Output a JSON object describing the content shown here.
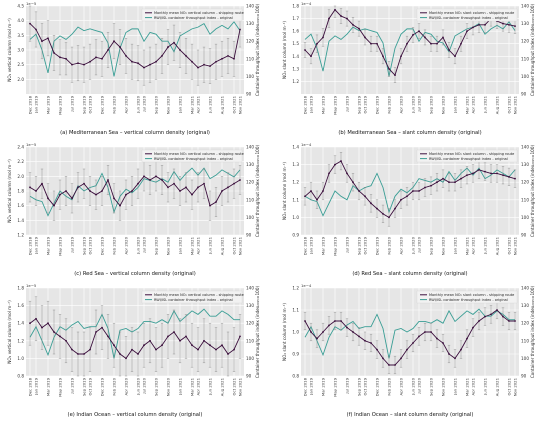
{
  "months": [
    "Dec 2018",
    "Jan 2019",
    "Feb 2019",
    "Mar 2019",
    "Apr 2019",
    "May 2019",
    "Jun 2019",
    "Jul 2019",
    "Aug 2019",
    "Sep 2019",
    "Oct 2019",
    "Nov 2019",
    "Dec 2019",
    "Jan 2020",
    "Feb 2020",
    "Mar 2020",
    "Apr 2020",
    "May 2020",
    "Jun 2020",
    "Jul 2020",
    "Aug 2020",
    "Sep 2020",
    "Oct 2020",
    "Nov 2020",
    "Dec 2020",
    "Jan 2021",
    "Feb 2021",
    "Mar 2021",
    "Apr 2021",
    "May 2021",
    "Jun 2021",
    "Jul 2021",
    "Aug 2021",
    "Sep 2021",
    "Oct 2021",
    "Nov 2021"
  ],
  "tick_labels": [
    "Dec 2018",
    "Jan 2019",
    "Mar 2019",
    "May 2019",
    "Jul 2019",
    "Sep 2019",
    "Oct 2019",
    "Dec 2019",
    "Feb 2020",
    "Apr 2020",
    "Jun 2020",
    "Jul 2020",
    "Sep 2020",
    "Nov 2020",
    "Jan 2021",
    "Mar 2021",
    "Apr 2021",
    "Jun 2021",
    "Aug 2021",
    "Oct 2021",
    "Nov 2021"
  ],
  "colors": {
    "no2": "#3b0f3d",
    "rwi": "#3a9e95",
    "bg": "#e6e6e6",
    "grid": "#ffffff"
  },
  "legend": {
    "vertical": "Monthly mean NO₂ vertical column - shipping route",
    "slant": "Monthly mean NO₂ slant column - shipping route",
    "rwi": "RWI/ISL container throughput index - original"
  },
  "axes": {
    "vertical_ylabel": "NO₂ vertical column (mol m⁻²)",
    "slant_ylabel": "NO₂ slant column (mol m⁻²)",
    "right_ylabel": "Container throughput index (index₂₀₁₅=100)"
  },
  "chart_data": [
    {
      "type": "line",
      "id": "a",
      "caption": "(a) Mediterranean Sea – vertical column density (original)",
      "exponent": "1e-5",
      "ylabel_key": "vertical",
      "ylim": [
        1.5,
        4.5
      ],
      "yticks": [
        2.0,
        2.5,
        3.0,
        3.5,
        4.0,
        4.5
      ],
      "y2lim": [
        90,
        140
      ],
      "y2ticks": [
        90,
        100,
        110,
        120,
        130,
        140
      ],
      "series": [
        {
          "name": "Monthly mean NO₂ vertical column - shipping route",
          "axis": "left",
          "values": [
            3.9,
            3.7,
            3.3,
            3.4,
            2.9,
            2.75,
            2.7,
            2.5,
            2.55,
            2.5,
            2.6,
            2.75,
            2.7,
            3.0,
            3.3,
            3.1,
            2.8,
            2.6,
            2.55,
            2.4,
            2.5,
            2.6,
            2.8,
            3.1,
            3.25,
            3.0,
            2.8,
            2.6,
            2.4,
            2.5,
            2.45,
            2.6,
            2.7,
            2.8,
            2.7,
            3.7
          ],
          "err": [
            0.6,
            0.6,
            0.6,
            0.6,
            0.6,
            0.6,
            0.55,
            0.6,
            0.6,
            0.6,
            0.6,
            0.6,
            0.6,
            0.6,
            0.6,
            0.6,
            0.6,
            0.6,
            0.6,
            0.6,
            0.6,
            0.6,
            0.6,
            0.6,
            0.6,
            0.6,
            0.6,
            0.6,
            0.6,
            0.6,
            0.6,
            0.6,
            0.6,
            0.6,
            0.6,
            0.6
          ]
        },
        {
          "name": "RWI/ISL container throughput index - original",
          "axis": "right",
          "values": [
            121,
            124,
            115,
            102,
            120,
            123,
            121,
            124,
            128,
            126,
            127,
            126,
            125,
            119,
            100,
            116,
            125,
            127,
            127,
            120,
            125,
            124,
            120,
            120,
            114,
            123,
            125,
            127,
            128,
            130,
            124,
            127,
            129,
            127,
            131,
            126
          ]
        }
      ]
    },
    {
      "type": "line",
      "id": "b",
      "caption": "(b) Mediterranean Sea – slant column density (original)",
      "exponent": "1e-4",
      "ylabel_key": "slant",
      "ylim": [
        1.1,
        1.8
      ],
      "yticks": [
        1.2,
        1.3,
        1.4,
        1.5,
        1.6,
        1.7,
        1.8
      ],
      "y2lim": [
        90,
        140
      ],
      "y2ticks": [
        90,
        100,
        110,
        120,
        130,
        140
      ],
      "series": [
        {
          "name": "Monthly mean NO₂ slant column - shipping route",
          "axis": "left",
          "values": [
            1.45,
            1.4,
            1.5,
            1.55,
            1.7,
            1.77,
            1.72,
            1.7,
            1.65,
            1.62,
            1.55,
            1.5,
            1.5,
            1.4,
            1.3,
            1.25,
            1.4,
            1.5,
            1.57,
            1.6,
            1.55,
            1.5,
            1.5,
            1.55,
            1.45,
            1.4,
            1.5,
            1.6,
            1.63,
            1.65,
            1.65,
            1.7,
            1.68,
            1.66,
            1.65,
            1.64
          ],
          "err": [
            0.06,
            0.06,
            0.07,
            0.07,
            0.07,
            0.06,
            0.06,
            0.06,
            0.06,
            0.06,
            0.06,
            0.06,
            0.06,
            0.06,
            0.06,
            0.06,
            0.06,
            0.06,
            0.06,
            0.06,
            0.06,
            0.06,
            0.06,
            0.06,
            0.06,
            0.06,
            0.06,
            0.06,
            0.06,
            0.06,
            0.06,
            0.06,
            0.06,
            0.06,
            0.06,
            0.06
          ]
        },
        {
          "name": "RWI/ISL container throughput index - original",
          "axis": "right",
          "values": [
            121,
            124,
            116,
            103,
            120,
            123,
            121,
            124,
            128,
            126,
            127,
            126,
            125,
            119,
            100,
            116,
            124,
            127,
            127,
            120,
            125,
            124,
            120,
            119,
            114,
            123,
            125,
            127,
            128,
            130,
            124,
            127,
            129,
            127,
            131,
            126
          ]
        }
      ]
    },
    {
      "type": "line",
      "id": "c",
      "caption": "(c) Red Sea – vertical column density (original)",
      "exponent": "1e-5",
      "ylabel_key": "vertical",
      "ylim": [
        1.2,
        2.4
      ],
      "yticks": [
        1.2,
        1.4,
        1.6,
        1.8,
        2.0,
        2.2,
        2.4
      ],
      "y2lim": [
        90,
        140
      ],
      "y2ticks": [
        90,
        100,
        110,
        120,
        130,
        140
      ],
      "series": [
        {
          "name": "Monthly mean NO₂ vertical column - shipping route",
          "axis": "left",
          "values": [
            1.85,
            1.8,
            1.9,
            1.7,
            1.6,
            1.75,
            1.8,
            1.7,
            1.85,
            1.9,
            1.8,
            1.75,
            1.8,
            1.95,
            1.7,
            1.6,
            1.75,
            1.8,
            1.9,
            2.0,
            1.95,
            2.0,
            1.95,
            1.85,
            1.9,
            1.8,
            1.85,
            1.75,
            1.85,
            1.9,
            1.6,
            1.65,
            1.8,
            1.85,
            1.9,
            1.95
          ],
          "err": [
            0.2,
            0.2,
            0.2,
            0.2,
            0.2,
            0.2,
            0.2,
            0.2,
            0.2,
            0.2,
            0.2,
            0.2,
            0.2,
            0.2,
            0.2,
            0.2,
            0.2,
            0.2,
            0.2,
            0.2,
            0.2,
            0.2,
            0.2,
            0.2,
            0.2,
            0.2,
            0.2,
            0.2,
            0.2,
            0.2,
            0.2,
            0.2,
            0.2,
            0.2,
            0.2,
            0.2
          ]
        },
        {
          "name": "RWI/ISL container throughput index - original",
          "axis": "right",
          "values": [
            112,
            110,
            109,
            101,
            108,
            115,
            112,
            110,
            118,
            115,
            117,
            118,
            125,
            117,
            103,
            112,
            116,
            114,
            117,
            122,
            121,
            120,
            122,
            120,
            126,
            121,
            125,
            128,
            124,
            128,
            122,
            124,
            127,
            125,
            123,
            127
          ]
        }
      ]
    },
    {
      "type": "line",
      "id": "d",
      "caption": "(d) Red Sea – slant column density (original)",
      "exponent": "1e-4",
      "ylabel_key": "slant",
      "ylim": [
        0.9,
        1.4
      ],
      "yticks": [
        0.9,
        1.0,
        1.1,
        1.2,
        1.3,
        1.4
      ],
      "y2lim": [
        90,
        140
      ],
      "y2ticks": [
        90,
        100,
        110,
        120,
        130,
        140
      ],
      "series": [
        {
          "name": "Monthly mean NO₂ slant column - shipping route",
          "axis": "left",
          "values": [
            1.12,
            1.15,
            1.1,
            1.15,
            1.25,
            1.3,
            1.32,
            1.25,
            1.2,
            1.15,
            1.12,
            1.08,
            1.05,
            1.02,
            1.0,
            1.05,
            1.1,
            1.12,
            1.15,
            1.15,
            1.17,
            1.18,
            1.2,
            1.22,
            1.2,
            1.2,
            1.22,
            1.24,
            1.25,
            1.27,
            1.26,
            1.25,
            1.25,
            1.24,
            1.23,
            1.22
          ],
          "err": [
            0.05,
            0.05,
            0.05,
            0.05,
            0.05,
            0.05,
            0.05,
            0.05,
            0.05,
            0.05,
            0.05,
            0.05,
            0.05,
            0.05,
            0.05,
            0.05,
            0.05,
            0.05,
            0.05,
            0.05,
            0.05,
            0.05,
            0.05,
            0.05,
            0.05,
            0.05,
            0.05,
            0.05,
            0.05,
            0.05,
            0.05,
            0.05,
            0.05,
            0.05,
            0.05,
            0.05
          ]
        },
        {
          "name": "RWI/ISL container throughput index - original",
          "axis": "right",
          "values": [
            112,
            110,
            109,
            101,
            108,
            115,
            112,
            110,
            118,
            115,
            117,
            118,
            125,
            117,
            103,
            112,
            116,
            114,
            117,
            122,
            121,
            120,
            122,
            120,
            126,
            121,
            125,
            128,
            124,
            128,
            122,
            124,
            127,
            125,
            123,
            127
          ]
        }
      ]
    },
    {
      "type": "line",
      "id": "e",
      "caption": "(e) Indian Ocean – vertical column density (original)",
      "exponent": "1e-5",
      "ylabel_key": "vertical",
      "ylim": [
        0.8,
        1.8
      ],
      "yticks": [
        0.8,
        1.0,
        1.2,
        1.4,
        1.6,
        1.8
      ],
      "y2lim": [
        90,
        140
      ],
      "y2ticks": [
        90,
        100,
        110,
        120,
        130,
        140
      ],
      "series": [
        {
          "name": "Monthly mean NO₂ vertical column - shipping route",
          "axis": "left",
          "values": [
            1.4,
            1.45,
            1.35,
            1.4,
            1.3,
            1.25,
            1.2,
            1.1,
            1.05,
            1.05,
            1.1,
            1.3,
            1.35,
            1.25,
            1.15,
            1.05,
            1.0,
            1.1,
            1.05,
            1.15,
            1.2,
            1.1,
            1.15,
            1.25,
            1.3,
            1.2,
            1.25,
            1.15,
            1.1,
            1.2,
            1.15,
            1.1,
            1.15,
            1.05,
            1.1,
            1.25
          ],
          "err": [
            0.25,
            0.25,
            0.25,
            0.25,
            0.25,
            0.25,
            0.25,
            0.25,
            0.25,
            0.25,
            0.25,
            0.25,
            0.25,
            0.25,
            0.25,
            0.25,
            0.25,
            0.25,
            0.25,
            0.25,
            0.25,
            0.25,
            0.25,
            0.25,
            0.25,
            0.25,
            0.25,
            0.25,
            0.25,
            0.25,
            0.25,
            0.25,
            0.25,
            0.25,
            0.25,
            0.25
          ]
        },
        {
          "name": "RWI/ISL container throughput index - original",
          "axis": "right",
          "values": [
            112,
            118,
            110,
            102,
            112,
            118,
            116,
            119,
            121,
            117,
            118,
            118,
            125,
            117,
            100,
            116,
            117,
            115,
            117,
            121,
            121,
            120,
            122,
            120,
            127,
            121,
            124,
            127,
            125,
            128,
            124,
            124,
            127,
            125,
            122,
            122
          ]
        }
      ]
    },
    {
      "type": "line",
      "id": "f",
      "caption": "(f) Indian Ocean – slant column density (original)",
      "exponent": "1e-4",
      "ylabel_key": "slant",
      "ylim": [
        0.8,
        1.2
      ],
      "yticks": [
        0.8,
        0.9,
        1.0,
        1.1,
        1.2
      ],
      "y2lim": [
        90,
        140
      ],
      "y2ticks": [
        90,
        100,
        110,
        120,
        130,
        140
      ],
      "series": [
        {
          "name": "Monthly mean NO₂ slant column - shipping route",
          "axis": "left",
          "values": [
            1.05,
            1.0,
            0.97,
            1.0,
            1.03,
            1.05,
            1.05,
            1.02,
            1.0,
            0.98,
            0.96,
            0.95,
            0.92,
            0.88,
            0.85,
            0.85,
            0.88,
            0.92,
            0.95,
            0.98,
            1.0,
            1.0,
            0.97,
            0.95,
            0.9,
            0.88,
            0.92,
            0.97,
            1.02,
            1.05,
            1.07,
            1.08,
            1.1,
            1.07,
            1.05,
            1.05
          ],
          "err": [
            0.04,
            0.04,
            0.04,
            0.04,
            0.04,
            0.04,
            0.04,
            0.04,
            0.04,
            0.04,
            0.04,
            0.04,
            0.04,
            0.04,
            0.04,
            0.04,
            0.04,
            0.04,
            0.04,
            0.04,
            0.04,
            0.04,
            0.04,
            0.04,
            0.04,
            0.04,
            0.04,
            0.04,
            0.04,
            0.04,
            0.04,
            0.04,
            0.04,
            0.04,
            0.04,
            0.04
          ]
        },
        {
          "name": "RWI/ISL container throughput index - original",
          "axis": "right",
          "values": [
            112,
            118,
            110,
            102,
            112,
            118,
            116,
            119,
            121,
            117,
            118,
            118,
            125,
            117,
            100,
            116,
            117,
            115,
            117,
            121,
            121,
            120,
            122,
            120,
            127,
            121,
            124,
            127,
            125,
            128,
            124,
            124,
            127,
            125,
            122,
            122
          ]
        }
      ]
    }
  ]
}
